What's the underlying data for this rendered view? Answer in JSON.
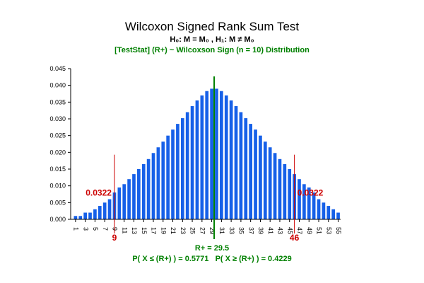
{
  "chart_data": {
    "type": "bar",
    "title": "Wilcoxon Signed Rank Sum Test",
    "hypothesis": "H₀: M = M₀ , H₁: M ≠ M₀",
    "distribution_label": "[TestStat] (R+) ~ Wilcoxson Sign (n = 10) Distribution",
    "x": [
      1,
      2,
      3,
      4,
      5,
      6,
      7,
      8,
      9,
      10,
      11,
      12,
      13,
      14,
      15,
      16,
      17,
      18,
      19,
      20,
      21,
      22,
      23,
      24,
      25,
      26,
      27,
      28,
      29,
      30,
      31,
      32,
      33,
      34,
      35,
      36,
      37,
      38,
      39,
      40,
      41,
      42,
      43,
      44,
      45,
      46,
      47,
      48,
      49,
      50,
      51,
      52,
      53,
      54,
      55
    ],
    "x_tick_labels": [
      "1",
      "3",
      "5",
      "7",
      "9",
      "11",
      "13",
      "15",
      "17",
      "19",
      "21",
      "23",
      "25",
      "27",
      "29",
      "31",
      "33",
      "35",
      "37",
      "39",
      "41",
      "43",
      "45",
      "47",
      "49",
      "51",
      "53",
      "55"
    ],
    "values": [
      0.001,
      0.001,
      0.002,
      0.002,
      0.003,
      0.004,
      0.005,
      0.006,
      0.008,
      0.0095,
      0.0105,
      0.012,
      0.0135,
      0.015,
      0.0165,
      0.018,
      0.0198,
      0.0215,
      0.0232,
      0.025,
      0.0268,
      0.0285,
      0.0302,
      0.032,
      0.0338,
      0.0355,
      0.037,
      0.0383,
      0.039,
      0.039,
      0.0383,
      0.037,
      0.0355,
      0.0338,
      0.032,
      0.0302,
      0.0285,
      0.0268,
      0.025,
      0.0232,
      0.0215,
      0.0198,
      0.018,
      0.0165,
      0.015,
      0.0135,
      0.012,
      0.0105,
      0.0095,
      0.008,
      0.006,
      0.005,
      0.004,
      0.003,
      0.002
    ],
    "yticks": [
      "0.000",
      "0.005",
      "0.010",
      "0.015",
      "0.020",
      "0.025",
      "0.030",
      "0.035",
      "0.040",
      "0.045"
    ],
    "ylim": [
      0,
      0.045
    ],
    "xlim": [
      0,
      55.5
    ],
    "bar_color": "#1660e8",
    "lower_critical": {
      "x": 9,
      "label": "9",
      "prob_label": "0.0322"
    },
    "upper_critical": {
      "x": 46,
      "label": "46",
      "prob_label": "0.0322"
    },
    "critical_color": "#cc0000",
    "observed": {
      "x": 29.5,
      "label": "R+ = 29.5"
    },
    "observed_color": "#008000",
    "p_values_label": "P( X ≤ (R+) ) = 0.5771   P( X ≥ (R+) ) = 0.4229"
  }
}
